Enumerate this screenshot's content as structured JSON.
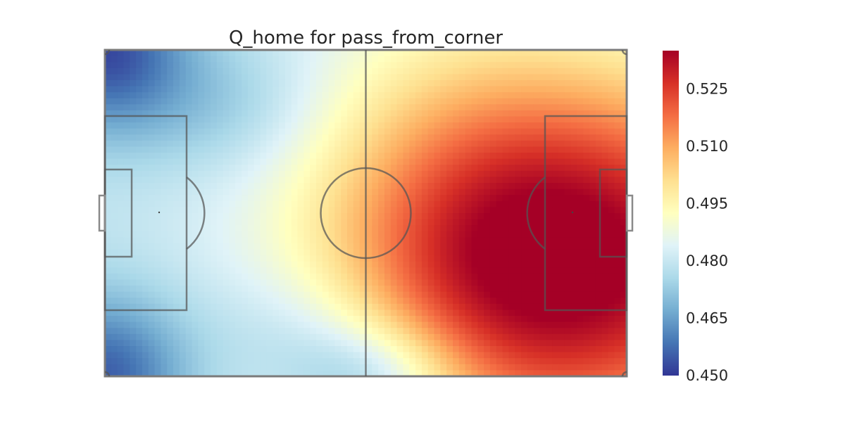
{
  "chart_data": {
    "type": "heatmap",
    "title": "Q_home for pass_from_corner",
    "xlabel": "",
    "ylabel": "",
    "background": "football-pitch",
    "colormap": "RdYlBu_r",
    "color_stops": [
      "#313695",
      "#4575b4",
      "#74add1",
      "#abd9e9",
      "#e0f3f8",
      "#ffffbf",
      "#fee090",
      "#fdae61",
      "#f46d43",
      "#d73027",
      "#a50026"
    ],
    "colorbar": {
      "range": [
        0.45,
        0.535
      ],
      "ticks": [
        0.45,
        0.465,
        0.48,
        0.495,
        0.51,
        0.525
      ],
      "tick_labels": [
        "0.450",
        "0.465",
        "0.480",
        "0.495",
        "0.510",
        "0.525"
      ],
      "placement": "right"
    },
    "pitch": {
      "length": 105,
      "width": 68
    },
    "value_field": {
      "base": 0.479,
      "hotspots": [
        {
          "x": 96,
          "y": 44,
          "sx": 33,
          "sy": 28,
          "amp": 0.056
        },
        {
          "x": 70,
          "y": 34,
          "sx": 22,
          "sy": 30,
          "amp": 0.012
        }
      ],
      "coldspots": [
        {
          "x": 0,
          "y": 0,
          "sx": 12,
          "sy": 12,
          "amp": 0.026
        },
        {
          "x": 0,
          "y": 68,
          "sx": 12,
          "sy": 12,
          "amp": 0.024
        },
        {
          "x": 55,
          "y": 68,
          "sx": 12,
          "sy": 8,
          "amp": 0.018
        },
        {
          "x": 25,
          "y": 12,
          "sx": 14,
          "sy": 10,
          "amp": 0.008
        },
        {
          "x": 40,
          "y": 58,
          "sx": 14,
          "sy": 10,
          "amp": 0.008
        }
      ],
      "notes": "values estimated from colour: bottom-left corner ≈ 0.452, top-middle edge ≈ 0.462, left half ≈ 0.475–0.485, centre ≈ 0.495, right penalty area ≈ 0.530"
    }
  }
}
